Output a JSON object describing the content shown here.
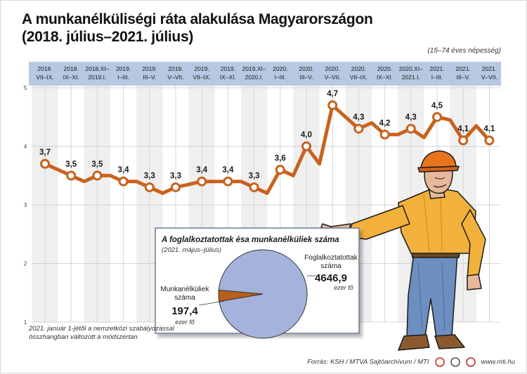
{
  "title_line1": "A munkanélküliségi ráta alakulása Magyarországon",
  "title_line2": "(2018. július–2021. július)",
  "note": "(15–74 éves népesség)",
  "footnote_line1": "2021. január 1-jétől a nemzetközi szabályozással",
  "footnote_line2": "összhangban változott a módszertan",
  "credits": "Forrás: KSH / MTVA Sajtóarchívum / MTI",
  "website": "www.mti.hu",
  "colors": {
    "line": "#c8621e",
    "header": "#b7c9e2",
    "pie_main": "#a5b3dc",
    "pie_small": "#b8601a"
  },
  "chart_data": [
    {
      "type": "line",
      "ylim": [
        1,
        5
      ],
      "yticks": [
        "1",
        "2",
        "3",
        "4",
        "5"
      ],
      "periods": [
        {
          "line1": "2018.",
          "line2": "VII–IX.",
          "value": 3.7
        },
        {
          "line1": "2018.",
          "line2": "IX–XI.",
          "value": 3.5
        },
        {
          "line1": "2018.XI–",
          "line2": "2019.I.",
          "value": 3.5
        },
        {
          "line1": "2019.",
          "line2": "I–III.",
          "value": 3.4
        },
        {
          "line1": "2019.",
          "line2": "III–V.",
          "value": 3.3
        },
        {
          "line1": "2019.",
          "line2": "V–VII.",
          "value": 3.3
        },
        {
          "line1": "2019.",
          "line2": "VII–IX.",
          "value": 3.4
        },
        {
          "line1": "2019.",
          "line2": "IX–XI.",
          "value": 3.4
        },
        {
          "line1": "2019.XI–",
          "line2": "2020.I.",
          "value": 3.3
        },
        {
          "line1": "2020.",
          "line2": "I–III.",
          "value": 3.6
        },
        {
          "line1": "2020.",
          "line2": "III–V.",
          "value": 4.0
        },
        {
          "line1": "2020.",
          "line2": "V–VII.",
          "value": 4.7
        },
        {
          "line1": "2020.",
          "line2": "VII–IX.",
          "value": 4.3
        },
        {
          "line1": "2020.",
          "line2": "IX–XI.",
          "value": 4.2
        },
        {
          "line1": "2020.XI–",
          "line2": "2021.I.",
          "value": 4.3
        },
        {
          "line1": "2021.",
          "line2": "I–III.",
          "value": 4.5
        },
        {
          "line1": "2021.",
          "line2": "III–V.",
          "value": 4.1
        },
        {
          "line1": "2021.",
          "line2": "V–VII.",
          "value": 4.1
        }
      ],
      "intermediate_values": [
        3.6,
        3.4,
        3.5,
        3.4,
        3.2,
        3.35,
        3.4,
        3.4,
        3.2,
        3.5,
        3.7,
        4.5,
        4.4,
        4.2,
        4.15,
        4.45,
        4.35,
        4.1
      ],
      "grid": true
    },
    {
      "type": "pie",
      "title": "A foglalkoztatottak ésa munkanélküliek száma",
      "subtitle": "(2021. május–július)",
      "slices": [
        {
          "name_line1": "Foglalkoztatottak",
          "name_line2": "száma",
          "value": 4646.9,
          "value_label": "4646,9",
          "unit": "ezer fő"
        },
        {
          "name_line1": "Munkanélküliek",
          "name_line2": "száma",
          "value": 197.4,
          "value_label": "197,4",
          "unit": "ezer fő"
        }
      ]
    }
  ]
}
